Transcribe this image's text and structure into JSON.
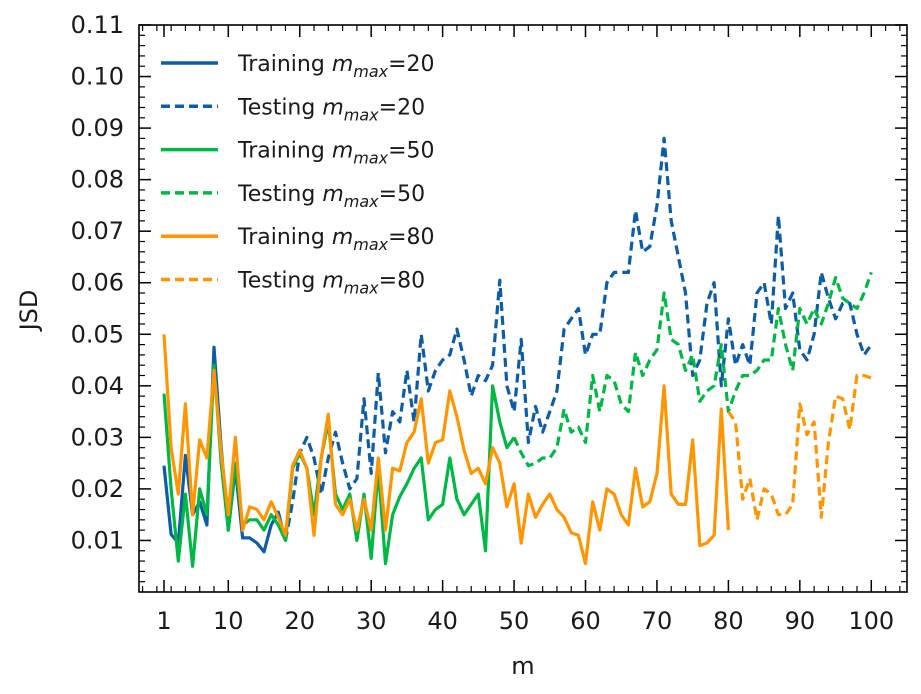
{
  "chart_data": {
    "type": "line",
    "xlabel": "m",
    "ylabel": "JSD",
    "xlim": [
      -2.5,
      105
    ],
    "ylim": [
      0.0,
      0.11
    ],
    "xticks": [
      1,
      10,
      20,
      30,
      40,
      50,
      60,
      70,
      80,
      90,
      100
    ],
    "xtick_labels": [
      "1",
      "10",
      "20",
      "30",
      "40",
      "50",
      "60",
      "70",
      "80",
      "90",
      "100"
    ],
    "yticks": [
      0.01,
      0.02,
      0.03,
      0.04,
      0.05,
      0.06,
      0.07,
      0.08,
      0.09,
      0.1,
      0.11
    ],
    "ytick_labels": [
      "0.01",
      "0.02",
      "0.03",
      "0.04",
      "0.05",
      "0.06",
      "0.07",
      "0.08",
      "0.09",
      "0.10",
      "0.11"
    ],
    "legend_position": "top-left",
    "series": [
      {
        "name": "Training m_max=20",
        "legend_prefix": "Training ",
        "legend_symbol": "m",
        "legend_subscript": "max",
        "legend_suffix": "=20",
        "color": "#0c5da5",
        "dashed": false,
        "x": [
          1,
          2,
          3,
          4,
          5,
          6,
          7,
          8,
          9,
          10,
          11,
          12,
          13,
          14,
          15,
          16,
          17,
          18
        ],
        "y": [
          0.0245,
          0.0112,
          0.0095,
          0.0265,
          0.015,
          0.0175,
          0.013,
          0.0475,
          0.028,
          0.012,
          0.024,
          0.0105,
          0.0105,
          0.0095,
          0.0078,
          0.013,
          0.0155,
          0.01
        ]
      },
      {
        "name": "Testing m_max=20",
        "legend_prefix": "Testing ",
        "legend_symbol": "m",
        "legend_subscript": "max",
        "legend_suffix": "=20",
        "color": "#0c5da5",
        "dashed": true,
        "x": [
          18,
          19,
          20,
          21,
          22,
          23,
          24,
          25,
          26,
          27,
          28,
          29,
          30,
          31,
          32,
          33,
          34,
          35,
          36,
          37,
          38,
          39,
          40,
          41,
          42,
          43,
          44,
          45,
          46,
          47,
          48,
          49,
          50,
          51,
          52,
          53,
          54,
          55,
          56,
          57,
          58,
          59,
          60,
          61,
          62,
          63,
          64,
          65,
          66,
          67,
          68,
          69,
          70,
          71,
          72,
          73,
          74,
          75,
          76,
          77,
          78,
          79,
          80,
          81,
          82,
          83,
          84,
          85,
          86,
          87,
          88,
          89,
          90,
          91,
          92,
          93,
          94,
          95,
          96,
          97,
          98,
          99,
          100
        ],
        "y": [
          0.01,
          0.0175,
          0.027,
          0.03,
          0.026,
          0.019,
          0.026,
          0.031,
          0.025,
          0.02,
          0.022,
          0.0375,
          0.023,
          0.0425,
          0.027,
          0.035,
          0.033,
          0.043,
          0.033,
          0.05,
          0.039,
          0.043,
          0.045,
          0.046,
          0.051,
          0.045,
          0.038,
          0.042,
          0.041,
          0.044,
          0.0605,
          0.04,
          0.035,
          0.049,
          0.029,
          0.036,
          0.031,
          0.035,
          0.039,
          0.051,
          0.053,
          0.055,
          0.046,
          0.05,
          0.05,
          0.06,
          0.062,
          0.062,
          0.062,
          0.074,
          0.066,
          0.067,
          0.075,
          0.088,
          0.072,
          0.065,
          0.058,
          0.042,
          0.045,
          0.056,
          0.06,
          0.04,
          0.053,
          0.044,
          0.048,
          0.044,
          0.058,
          0.06,
          0.052,
          0.073,
          0.055,
          0.058,
          0.047,
          0.045,
          0.05,
          0.062,
          0.057,
          0.053,
          0.056,
          0.056,
          0.05,
          0.046,
          0.048
        ]
      },
      {
        "name": "Training m_max=50",
        "legend_prefix": "Training ",
        "legend_symbol": "m",
        "legend_subscript": "max",
        "legend_suffix": "=50",
        "color": "#00b945",
        "dashed": false,
        "x": [
          1,
          2,
          3,
          4,
          5,
          6,
          7,
          8,
          9,
          10,
          11,
          12,
          13,
          14,
          15,
          16,
          17,
          18,
          19,
          20,
          21,
          22,
          23,
          24,
          25,
          26,
          27,
          28,
          29,
          30,
          31,
          32,
          33,
          34,
          35,
          36,
          37,
          38,
          39,
          40,
          41,
          42,
          43,
          44,
          45,
          46,
          47,
          48,
          49,
          50
        ],
        "y": [
          0.0385,
          0.02,
          0.006,
          0.019,
          0.005,
          0.02,
          0.015,
          0.044,
          0.025,
          0.012,
          0.025,
          0.013,
          0.014,
          0.014,
          0.012,
          0.015,
          0.013,
          0.01,
          0.024,
          0.027,
          0.024,
          0.015,
          0.026,
          0.033,
          0.019,
          0.016,
          0.019,
          0.01,
          0.019,
          0.0065,
          0.024,
          0.0055,
          0.015,
          0.0185,
          0.021,
          0.024,
          0.026,
          0.014,
          0.016,
          0.017,
          0.026,
          0.018,
          0.015,
          0.017,
          0.019,
          0.008,
          0.04,
          0.033,
          0.028,
          0.03
        ]
      },
      {
        "name": "Testing m_max=50",
        "legend_prefix": "Testing ",
        "legend_symbol": "m",
        "legend_subscript": "max",
        "legend_suffix": "=50",
        "color": "#00b945",
        "dashed": true,
        "x": [
          50,
          51,
          52,
          53,
          54,
          55,
          56,
          57,
          58,
          59,
          60,
          61,
          62,
          63,
          64,
          65,
          66,
          67,
          68,
          69,
          70,
          71,
          72,
          73,
          74,
          75,
          76,
          77,
          78,
          79,
          80,
          81,
          82,
          83,
          84,
          85,
          86,
          87,
          88,
          89,
          90,
          91,
          92,
          93,
          94,
          95,
          96,
          97,
          98,
          99,
          100
        ],
        "y": [
          0.03,
          0.027,
          0.0245,
          0.025,
          0.026,
          0.026,
          0.028,
          0.0355,
          0.031,
          0.032,
          0.029,
          0.042,
          0.035,
          0.042,
          0.041,
          0.0365,
          0.035,
          0.0465,
          0.042,
          0.045,
          0.047,
          0.058,
          0.049,
          0.048,
          0.043,
          0.046,
          0.037,
          0.039,
          0.04,
          0.048,
          0.035,
          0.039,
          0.042,
          0.042,
          0.043,
          0.045,
          0.045,
          0.055,
          0.048,
          0.043,
          0.055,
          0.052,
          0.055,
          0.052,
          0.056,
          0.061,
          0.057,
          0.056,
          0.055,
          0.058,
          0.062
        ]
      },
      {
        "name": "Training m_max=80",
        "legend_prefix": "Training ",
        "legend_symbol": "m",
        "legend_subscript": "max",
        "legend_suffix": "=80",
        "color": "#ff9500",
        "dashed": false,
        "x": [
          1,
          2,
          3,
          4,
          5,
          6,
          7,
          8,
          9,
          10,
          11,
          12,
          13,
          14,
          15,
          16,
          17,
          18,
          19,
          20,
          21,
          22,
          23,
          24,
          25,
          26,
          27,
          28,
          29,
          30,
          31,
          32,
          33,
          34,
          35,
          36,
          37,
          38,
          39,
          40,
          41,
          42,
          43,
          44,
          45,
          46,
          47,
          48,
          49,
          50,
          51,
          52,
          53,
          54,
          55,
          56,
          57,
          58,
          59,
          60,
          61,
          62,
          63,
          64,
          65,
          66,
          67,
          68,
          69,
          70,
          71,
          72,
          73,
          74,
          75,
          76,
          77,
          78,
          79,
          80
        ],
        "y": [
          0.05,
          0.028,
          0.019,
          0.0365,
          0.015,
          0.0295,
          0.026,
          0.043,
          0.027,
          0.015,
          0.03,
          0.012,
          0.0165,
          0.016,
          0.014,
          0.0175,
          0.0145,
          0.011,
          0.0245,
          0.0275,
          0.024,
          0.011,
          0.026,
          0.0345,
          0.017,
          0.015,
          0.018,
          0.012,
          0.018,
          0.012,
          0.026,
          0.012,
          0.024,
          0.0235,
          0.029,
          0.031,
          0.0375,
          0.025,
          0.029,
          0.0295,
          0.039,
          0.034,
          0.0275,
          0.023,
          0.024,
          0.021,
          0.028,
          0.025,
          0.0165,
          0.021,
          0.0095,
          0.019,
          0.0145,
          0.017,
          0.019,
          0.016,
          0.0145,
          0.0115,
          0.011,
          0.0055,
          0.0175,
          0.012,
          0.02,
          0.019,
          0.015,
          0.013,
          0.024,
          0.0165,
          0.0175,
          0.023,
          0.04,
          0.019,
          0.017,
          0.017,
          0.0295,
          0.009,
          0.0095,
          0.011,
          0.0355,
          0.012
        ]
      },
      {
        "name": "Testing m_max=80",
        "legend_prefix": "Testing ",
        "legend_symbol": "m",
        "legend_subscript": "max",
        "legend_suffix": "=80",
        "color": "#ff9500",
        "dashed": true,
        "x": [
          80,
          81,
          82,
          83,
          84,
          85,
          86,
          87,
          88,
          89,
          90,
          91,
          92,
          93,
          94,
          95,
          96,
          97,
          98,
          99,
          100
        ],
        "y": [
          0.035,
          0.033,
          0.018,
          0.022,
          0.014,
          0.02,
          0.019,
          0.015,
          0.015,
          0.017,
          0.0365,
          0.0305,
          0.033,
          0.0145,
          0.029,
          0.038,
          0.0375,
          0.0315,
          0.042,
          0.042,
          0.0415
        ]
      }
    ]
  }
}
